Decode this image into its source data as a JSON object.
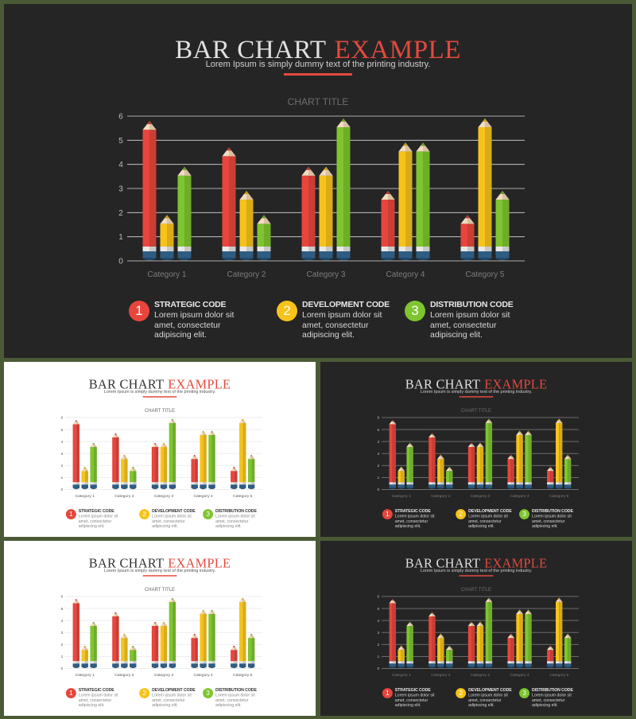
{
  "slide": {
    "title_part1": "BAR CHART",
    "title_part2": "EXAMPLE",
    "subtitle": "Lorem Ipsum is simply dummy text of the printing industry.",
    "chart_title": "CHART TITLE"
  },
  "legend": [
    {
      "num": "1",
      "title": "STRATEGIC CODE",
      "text": "Lorem ipsum dolor sit amet, consectetur adipiscing elit.",
      "color": "#e8453c"
    },
    {
      "num": "2",
      "title": "DEVELOPMENT CODE",
      "text": "Lorem ipsum dolor sit amet, consectetur adipiscing elit.",
      "color": "#f7c31a"
    },
    {
      "num": "3",
      "title": "DISTRIBUTION CODE",
      "text": "Lorem ipsum dolor sit amet, consectetur adipiscing elit.",
      "color": "#7ec52f"
    }
  ],
  "colors": {
    "red": "#e8453c",
    "yellow": "#f7c31a",
    "green": "#7ec52f",
    "accent": "#e24a3e",
    "dark_bg": "#252525",
    "frame": "#4a5a36"
  },
  "chart_data": {
    "type": "bar",
    "title": "CHART TITLE",
    "categories": [
      "Category 1",
      "Category 2",
      "Category 3",
      "Category 4",
      "Category 5"
    ],
    "series": [
      {
        "name": "STRATEGIC CODE",
        "values": [
          5.8,
          4.7,
          3.9,
          2.9,
          1.9
        ]
      },
      {
        "name": "DEVELOPMENT CODE",
        "values": [
          1.9,
          2.9,
          3.9,
          4.9,
          5.9
        ]
      },
      {
        "name": "DISTRIBUTION CODE",
        "values": [
          3.9,
          1.9,
          5.9,
          4.9,
          2.9
        ]
      }
    ],
    "ylim": [
      0,
      6
    ],
    "yticks": [
      "0",
      "1",
      "2",
      "3",
      "4",
      "5",
      "6"
    ],
    "grid": true
  },
  "slides": [
    {
      "id": "main",
      "theme": "dark"
    },
    {
      "id": "thumb-1",
      "theme": "light"
    },
    {
      "id": "thumb-2",
      "theme": "dark"
    },
    {
      "id": "thumb-3",
      "theme": "light"
    },
    {
      "id": "thumb-4",
      "theme": "dark"
    }
  ]
}
